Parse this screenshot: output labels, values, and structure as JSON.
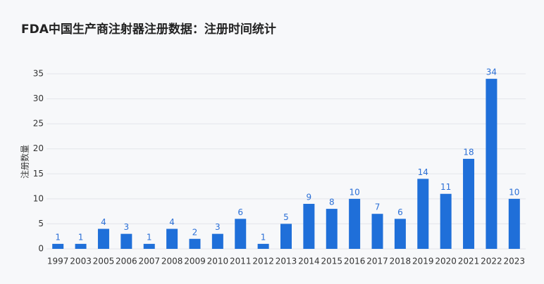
{
  "chart_data": {
    "type": "bar",
    "title": "FDA中国生产商注射器注册数据：注册时间统计",
    "y_label": "注册数量",
    "categories": [
      "1997",
      "2003",
      "2005",
      "2006",
      "2007",
      "2008",
      "2009",
      "2010",
      "2011",
      "2012",
      "2013",
      "2014",
      "2015",
      "2016",
      "2017",
      "2018",
      "2019",
      "2020",
      "2021",
      "2022",
      "2023"
    ],
    "values": [
      1,
      1,
      4,
      3,
      1,
      4,
      2,
      3,
      6,
      1,
      5,
      9,
      8,
      10,
      7,
      6,
      14,
      11,
      18,
      34,
      10
    ],
    "color": "#1f6fd9",
    "ylim": [
      0,
      35
    ],
    "yticks": [
      0,
      5,
      10,
      15,
      20,
      25,
      30,
      35
    ],
    "grid": true
  }
}
